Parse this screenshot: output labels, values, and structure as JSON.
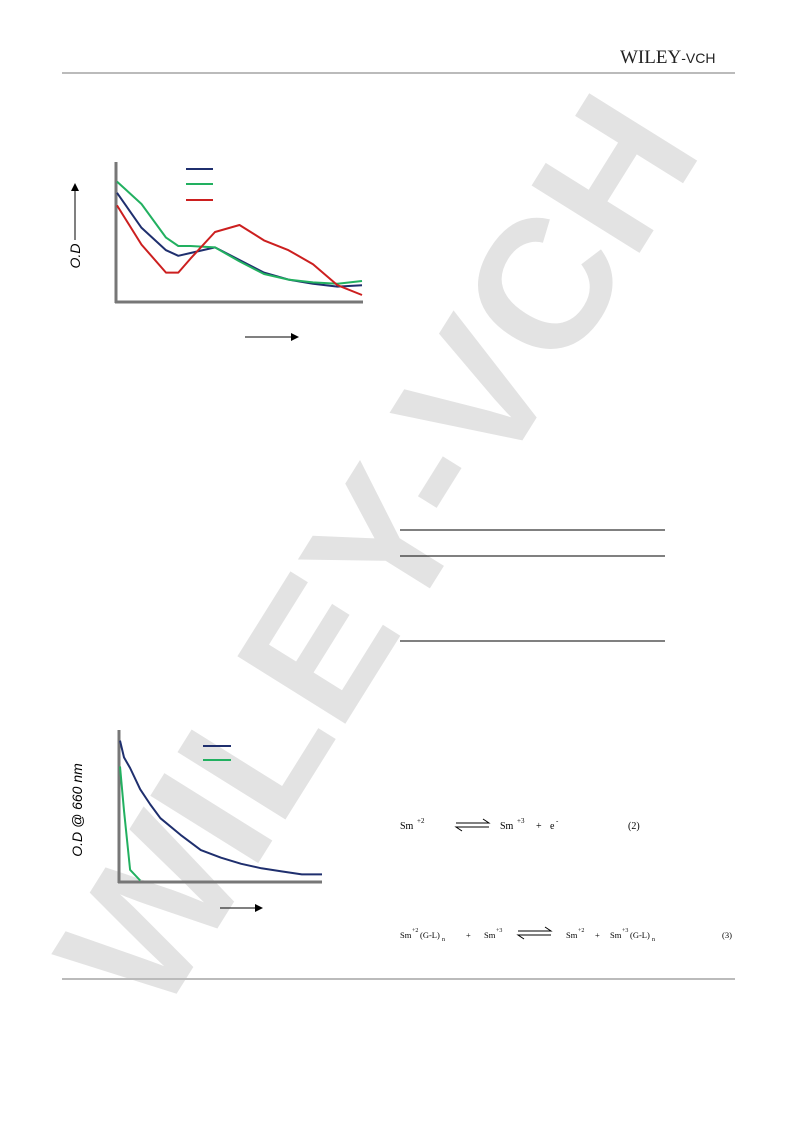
{
  "header": {
    "logo": "WILEY",
    "logo_suffix": "-VCH"
  },
  "watermark": "WILEY-VCH",
  "figures": [
    {
      "chart_data": {
        "type": "line",
        "y_label": "O.D",
        "x": [
          0,
          10,
          20,
          25,
          30,
          40,
          50,
          60,
          70,
          80,
          90,
          100
        ],
        "xlim": [
          0,
          100
        ],
        "ylim": [
          0,
          100
        ],
        "series": [
          {
            "color": "#1f2f6e",
            "values": [
              78,
              53,
              37,
              33,
              35,
              39,
              30,
              21,
              16,
              13,
              11,
              12
            ]
          },
          {
            "color": "#22b060",
            "values": [
              86,
              70,
              46,
              40,
              40,
              39,
              29,
              20,
              16,
              14,
              13,
              15
            ]
          },
          {
            "color": "#cc1f1f",
            "values": [
              69,
              41,
              21,
              21,
              31,
              50,
              55,
              44,
              37,
              27,
              12,
              5
            ]
          }
        ]
      }
    },
    {
      "chart_data": {
        "type": "line",
        "y_label": "O.D @ 660 nm",
        "x": [
          0,
          2,
          5,
          10,
          15,
          20,
          30,
          40,
          50,
          60,
          70,
          80,
          90,
          100
        ],
        "xlim": [
          0,
          100
        ],
        "ylim": [
          0,
          100
        ],
        "series": [
          {
            "color": "#1f2f6e",
            "values": [
              93,
              82,
              75,
              61,
              51,
              42,
              31,
              21,
              16,
              12,
              9,
              7,
              5,
              5
            ]
          },
          {
            "color": "#22b060",
            "values": [
              76,
              47,
              8,
              1,
              null,
              null,
              null,
              null,
              null,
              null,
              null,
              null,
              null,
              null
            ]
          }
        ]
      }
    }
  ],
  "equations": [
    {
      "parts": [
        "Sm",
        "+2",
        "Sm",
        "+3",
        "+",
        "e",
        "-",
        "(2)"
      ]
    },
    {
      "parts": [
        "Sm",
        "+2",
        "(G-L)",
        "n",
        "+",
        "Sm",
        "+3",
        "Sm",
        "+2",
        "+",
        "Sm",
        "+3",
        "(G-L)",
        "n",
        "(3)"
      ]
    }
  ]
}
